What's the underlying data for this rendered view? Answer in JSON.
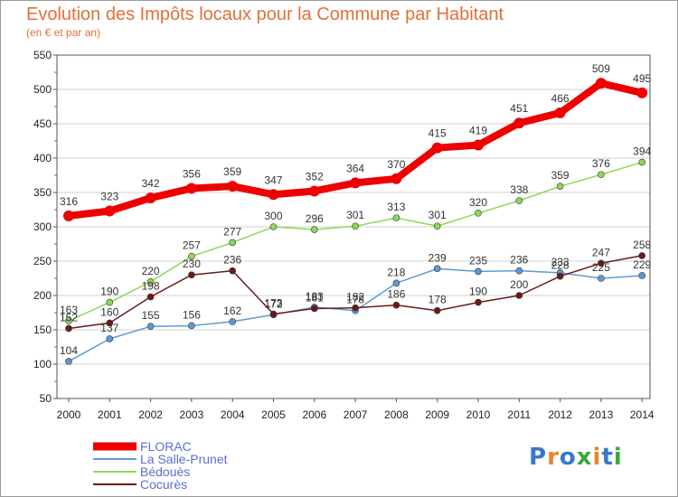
{
  "title": "Evolution des Impôts locaux pour la Commune par Habitant",
  "subtitle": "(en € et par an)",
  "logo": {
    "text": "Proxiti",
    "colors": [
      "#3a78c8",
      "#e8862a",
      "#3a78c8",
      "#3aa83a",
      "#e8862a",
      "#3a78c8",
      "#3aa83a"
    ]
  },
  "colors": {
    "title": "#e0703a",
    "legend_text": "#5a6fd0",
    "plot_border": "#555555",
    "grid": "#d0d0d0"
  },
  "chart_data": {
    "type": "line",
    "title": "Evolution des Impôts locaux pour la Commune par Habitant",
    "subtitle": "(en € et par an)",
    "x": [
      "2000",
      "2001",
      "2002",
      "2003",
      "2004",
      "2005",
      "2006",
      "2007",
      "2008",
      "2009",
      "2010",
      "2011",
      "2012",
      "2013",
      "2014"
    ],
    "ylim": [
      50,
      550
    ],
    "yticks": [
      50,
      100,
      150,
      200,
      250,
      300,
      350,
      400,
      450,
      500,
      550
    ],
    "grid": true,
    "legend_position": "bottom-left",
    "series": [
      {
        "name": "FLORAC",
        "color": "#ee0000",
        "thick": true,
        "values": [
          316,
          323,
          342,
          356,
          359,
          347,
          352,
          364,
          370,
          415,
          419,
          451,
          466,
          509,
          495
        ]
      },
      {
        "name": "La Salle-Prunet",
        "color": "#5b9bd5",
        "thick": false,
        "values": [
          104,
          137,
          155,
          156,
          162,
          172,
          183,
          178,
          218,
          239,
          235,
          236,
          233,
          225,
          229
        ]
      },
      {
        "name": "Bédouès",
        "color": "#8fd65a",
        "thick": false,
        "values": [
          163,
          190,
          220,
          257,
          277,
          300,
          296,
          301,
          313,
          301,
          320,
          338,
          359,
          376,
          394
        ]
      },
      {
        "name": "Cocurès",
        "color": "#6b1a1a",
        "thick": false,
        "values": [
          152,
          160,
          198,
          230,
          236,
          173,
          181,
          182,
          186,
          178,
          190,
          200,
          228,
          247,
          258
        ]
      }
    ]
  }
}
